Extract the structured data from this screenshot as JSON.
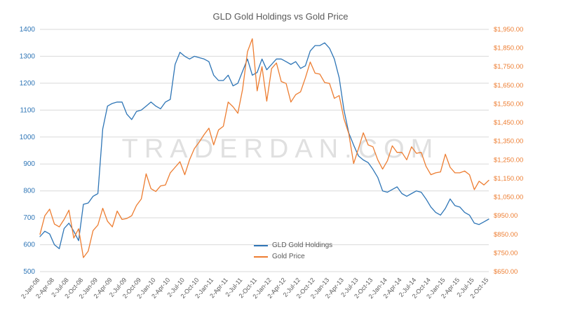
{
  "watermark": "TRADERDAN.COM",
  "chart_data": {
    "type": "line",
    "title": "GLD Gold Holdings vs Gold Price",
    "xlabel": "",
    "grid": true,
    "legend_position": "bottom-center",
    "x_tick_every": 3,
    "x_tick_labels": [
      "2-Jan-08",
      "2-Apr-08",
      "2-Jul-08",
      "2-Oct-08",
      "2-Jan-09",
      "2-Apr-09",
      "2-Jul-09",
      "2-Oct-09",
      "2-Jan-10",
      "2-Apr-10",
      "2-Jul-10",
      "2-Oct-10",
      "2-Jan-11",
      "2-Apr-11",
      "2-Jul-11",
      "2-Oct-11",
      "2-Jan-12",
      "2-Apr-12",
      "2-Jul-12",
      "2-Oct-12",
      "2-Jan-13",
      "2-Apr-13",
      "2-Jul-13",
      "2-Oct-13",
      "2-Jan-14",
      "2-Apr-14",
      "2-Jul-14",
      "2-Oct-14",
      "2-Jan-15",
      "2-Apr-15",
      "2-Jul-15",
      "2-Oct-15"
    ],
    "left_axis": {
      "min": 500,
      "max": 1400,
      "step": 100,
      "color": "#2e75b6",
      "format": "number"
    },
    "right_axis": {
      "min": 650,
      "max": 1950,
      "step": 100,
      "color": "#ed7d31",
      "format": "currency"
    },
    "series": [
      {
        "name": "GLD Gold Holdings",
        "axis": "left",
        "color": "#2e75b6",
        "values": [
          630,
          650,
          640,
          600,
          585,
          660,
          680,
          650,
          615,
          750,
          755,
          780,
          790,
          1030,
          1115,
          1125,
          1130,
          1130,
          1085,
          1065,
          1095,
          1100,
          1115,
          1130,
          1115,
          1105,
          1130,
          1140,
          1270,
          1315,
          1300,
          1290,
          1300,
          1295,
          1290,
          1280,
          1230,
          1210,
          1210,
          1230,
          1190,
          1200,
          1245,
          1290,
          1230,
          1240,
          1290,
          1250,
          1270,
          1290,
          1290,
          1280,
          1270,
          1280,
          1255,
          1265,
          1320,
          1340,
          1340,
          1350,
          1330,
          1290,
          1220,
          1100,
          1015,
          970,
          930,
          915,
          905,
          880,
          850,
          800,
          795,
          805,
          815,
          790,
          780,
          790,
          800,
          795,
          770,
          740,
          720,
          710,
          735,
          770,
          745,
          740,
          720,
          710,
          680,
          675,
          685,
          695
        ]
      },
      {
        "name": "Gold Price",
        "axis": "right",
        "color": "#ed7d31",
        "values": [
          850,
          950,
          985,
          905,
          890,
          930,
          980,
          830,
          880,
          725,
          760,
          870,
          900,
          990,
          920,
          890,
          975,
          930,
          935,
          950,
          1005,
          1040,
          1175,
          1095,
          1080,
          1110,
          1115,
          1180,
          1210,
          1240,
          1170,
          1250,
          1310,
          1345,
          1385,
          1420,
          1330,
          1410,
          1430,
          1560,
          1535,
          1500,
          1630,
          1830,
          1900,
          1620,
          1750,
          1565,
          1740,
          1770,
          1670,
          1660,
          1560,
          1600,
          1615,
          1690,
          1775,
          1715,
          1710,
          1665,
          1660,
          1580,
          1595,
          1470,
          1390,
          1230,
          1310,
          1395,
          1330,
          1320,
          1250,
          1200,
          1245,
          1325,
          1290,
          1290,
          1250,
          1320,
          1285,
          1290,
          1215,
          1170,
          1180,
          1185,
          1280,
          1210,
          1180,
          1180,
          1190,
          1170,
          1090,
          1135,
          1115,
          1140
        ]
      }
    ]
  }
}
